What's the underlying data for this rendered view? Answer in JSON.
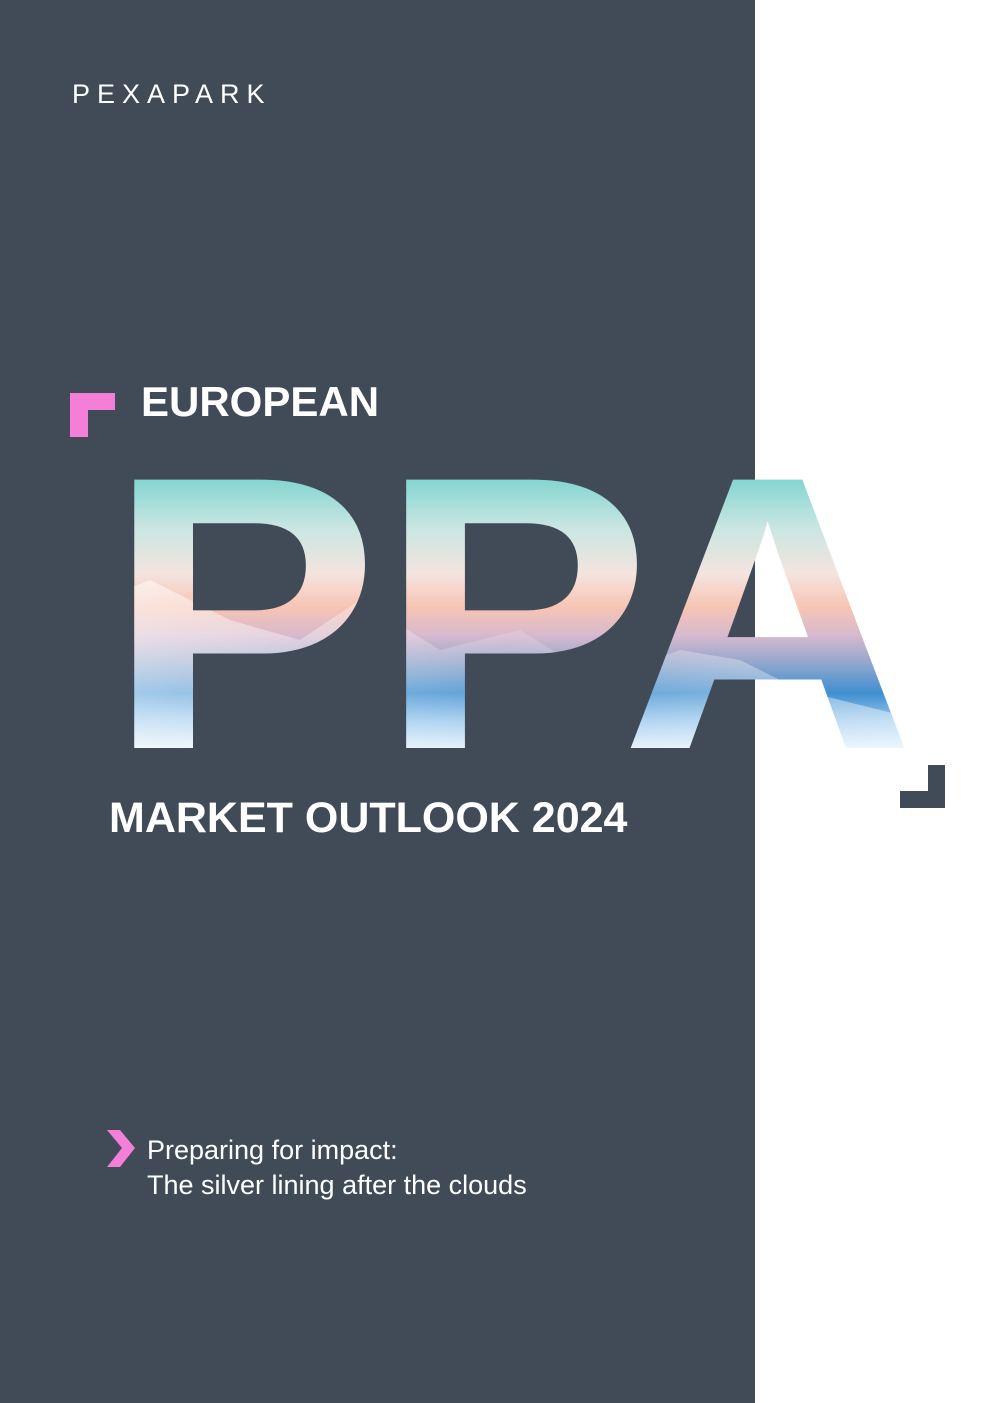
{
  "header": {
    "brand": "PEXAPARK"
  },
  "cover": {
    "kicker": "EUROPEAN",
    "headline": "PPA",
    "title": "MARKET OUTLOOK 2024"
  },
  "subtitle": {
    "lines": [
      "Preparing for impact:",
      "The silver lining after the clouds"
    ]
  }
}
